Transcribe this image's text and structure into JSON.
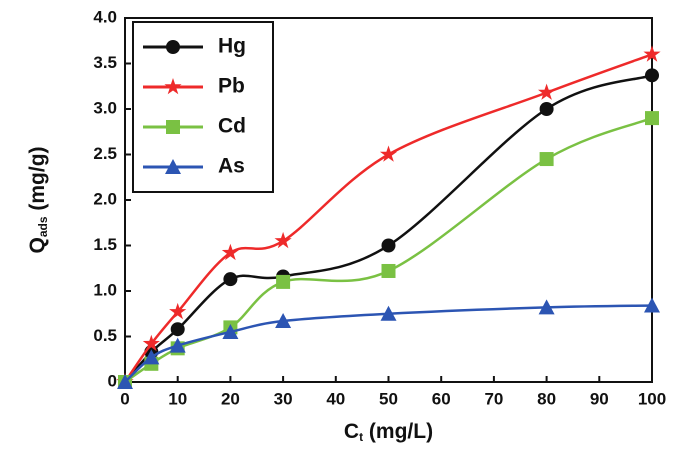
{
  "chart_data": {
    "type": "line",
    "x_label": [
      "C",
      "t",
      " (mg/L)"
    ],
    "y_label": [
      "Q",
      "ads",
      " (mg/g)"
    ],
    "x": [
      0,
      5,
      10,
      20,
      30,
      50,
      80,
      100
    ],
    "series": [
      {
        "name": "Hg",
        "color": "#111111",
        "marker": "circle",
        "values": [
          0,
          0.33,
          0.58,
          1.13,
          1.16,
          1.5,
          3.0,
          3.37
        ]
      },
      {
        "name": "Pb",
        "color": "#ee2a2a",
        "marker": "star",
        "values": [
          0,
          0.42,
          0.77,
          1.42,
          1.55,
          2.5,
          3.18,
          3.6
        ]
      },
      {
        "name": "Cd",
        "color": "#7ac143",
        "marker": "square",
        "values": [
          0,
          0.2,
          0.37,
          0.6,
          1.1,
          1.22,
          2.45,
          2.9
        ]
      },
      {
        "name": "As",
        "color": "#2c55b3",
        "marker": "triangle",
        "values": [
          0,
          0.27,
          0.4,
          0.55,
          0.67,
          0.75,
          0.82,
          0.84
        ]
      }
    ],
    "xlim": [
      0,
      100
    ],
    "xticks": [
      0,
      10,
      20,
      30,
      40,
      50,
      60,
      70,
      80,
      90,
      100
    ],
    "ylim": [
      0,
      4
    ],
    "yticks": [
      0,
      0.5,
      {
        "value": 1,
        "label": "1.0"
      },
      1.5,
      {
        "value": 2,
        "label": "2.0"
      },
      2.5,
      {
        "value": 3,
        "label": "3.0"
      },
      3.5,
      {
        "value": 4,
        "label": "4.0"
      }
    ],
    "grid": false,
    "legend": "upper left"
  }
}
